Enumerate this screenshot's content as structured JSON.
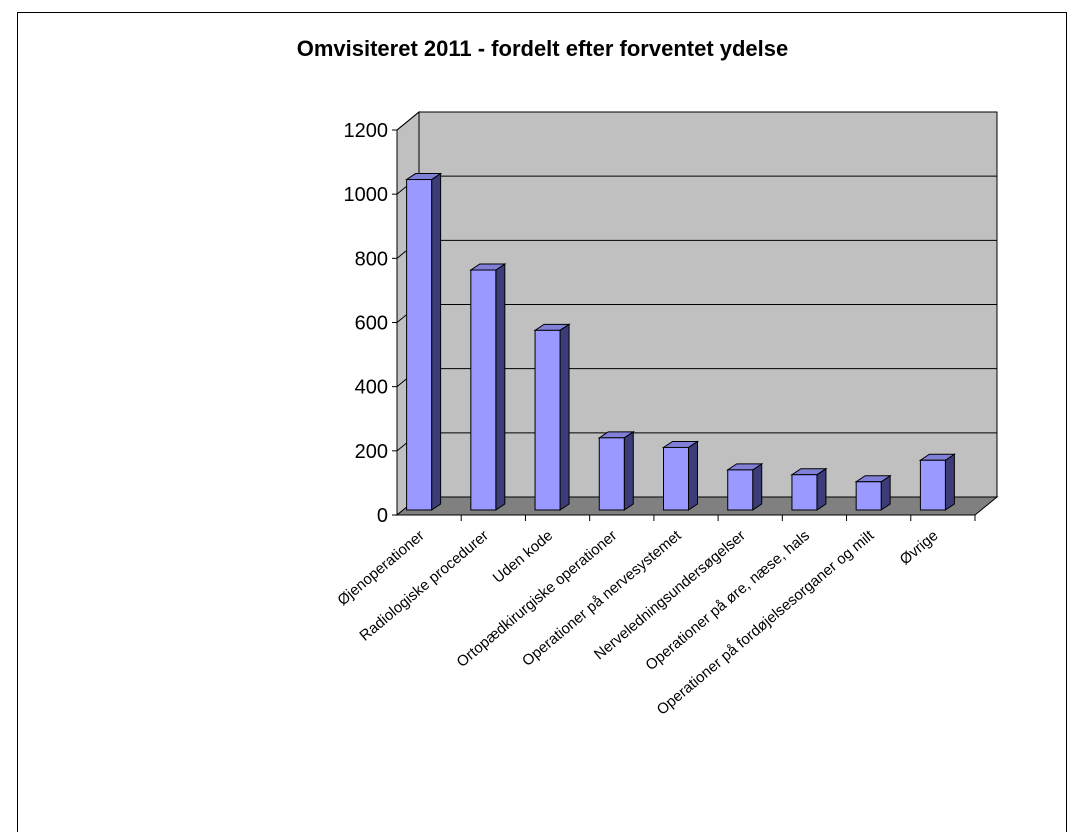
{
  "chart_data": {
    "type": "bar",
    "title": "Omvisiteret 2011 - fordelt efter forventet ydelse",
    "xlabel": "",
    "ylabel": "",
    "categories": [
      "Øjenoperationer",
      "Radiologiske procedurer",
      "Uden kode",
      "Ortopædkirurgiske operationer",
      "Operationer på nervesystemet",
      "Nerveledningsundersøgelser",
      "Operationer på øre, næse, hals",
      "Operationer på fordøjelsesorganer og milt",
      "Øvrige"
    ],
    "values": [
      1030,
      748,
      560,
      225,
      195,
      125,
      110,
      88,
      155
    ],
    "ylim": [
      0,
      1200
    ],
    "yticks": [
      "0",
      "200",
      "400",
      "600",
      "800",
      "1000",
      "1200"
    ],
    "grid": true,
    "legend": "none",
    "style": "3d-column",
    "colors": {
      "bar_front": "#9999ff",
      "bar_side": "#3c3c78",
      "bar_top": "#8080d8",
      "wall": "#c0c0c0",
      "floor": "#808080"
    }
  }
}
